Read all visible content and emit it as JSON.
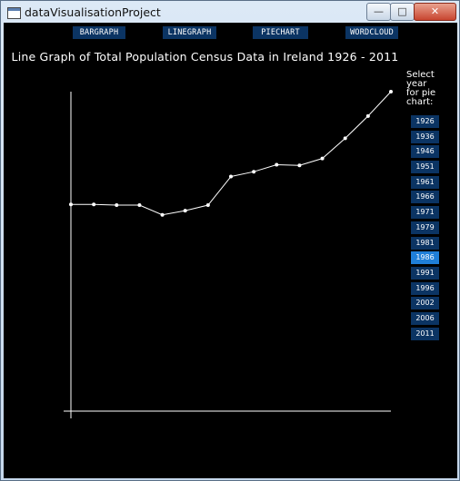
{
  "window": {
    "title": "dataVisualisationProject",
    "buttons": {
      "minimize": "—",
      "maximize": "□",
      "close": "✕"
    }
  },
  "nav": [
    {
      "label": "BARGRAPH",
      "name": "bargraph-button"
    },
    {
      "label": "LINEGRAPH",
      "name": "linegraph-button"
    },
    {
      "label": "PIECHART",
      "name": "piechart-button"
    },
    {
      "label": "WORDCLOUD",
      "name": "wordcloud-button"
    }
  ],
  "chart_title": "Line Graph of Total Population Census Data in Ireland 1926 - 2011",
  "year_selector": {
    "label_lines": [
      "Select",
      "year",
      "for pie",
      "chart:"
    ],
    "years": [
      "1926",
      "1936",
      "1946",
      "1951",
      "1961",
      "1966",
      "1971",
      "1979",
      "1981",
      "1986",
      "1991",
      "1996",
      "2002",
      "2006",
      "2011"
    ],
    "selected": "1986"
  },
  "colors": {
    "background": "#000000",
    "button": "#0b3463",
    "button_active": "#1f7fd8",
    "line": "#ffffff"
  },
  "chart_data": {
    "type": "line",
    "title": "Line Graph of Total Population Census Data in Ireland 1926 - 2011",
    "x": [
      "1926",
      "1936",
      "1946",
      "1951",
      "1961",
      "1966",
      "1971",
      "1979",
      "1981",
      "1986",
      "1991",
      "1996",
      "2002",
      "2006",
      "2011"
    ],
    "values": [
      2.97,
      2.97,
      2.96,
      2.96,
      2.82,
      2.88,
      2.96,
      3.37,
      3.44,
      3.54,
      3.53,
      3.63,
      3.92,
      4.24,
      4.59
    ],
    "ylim": [
      0,
      4.59
    ],
    "xlabel": "",
    "ylabel": "",
    "grid": false
  }
}
